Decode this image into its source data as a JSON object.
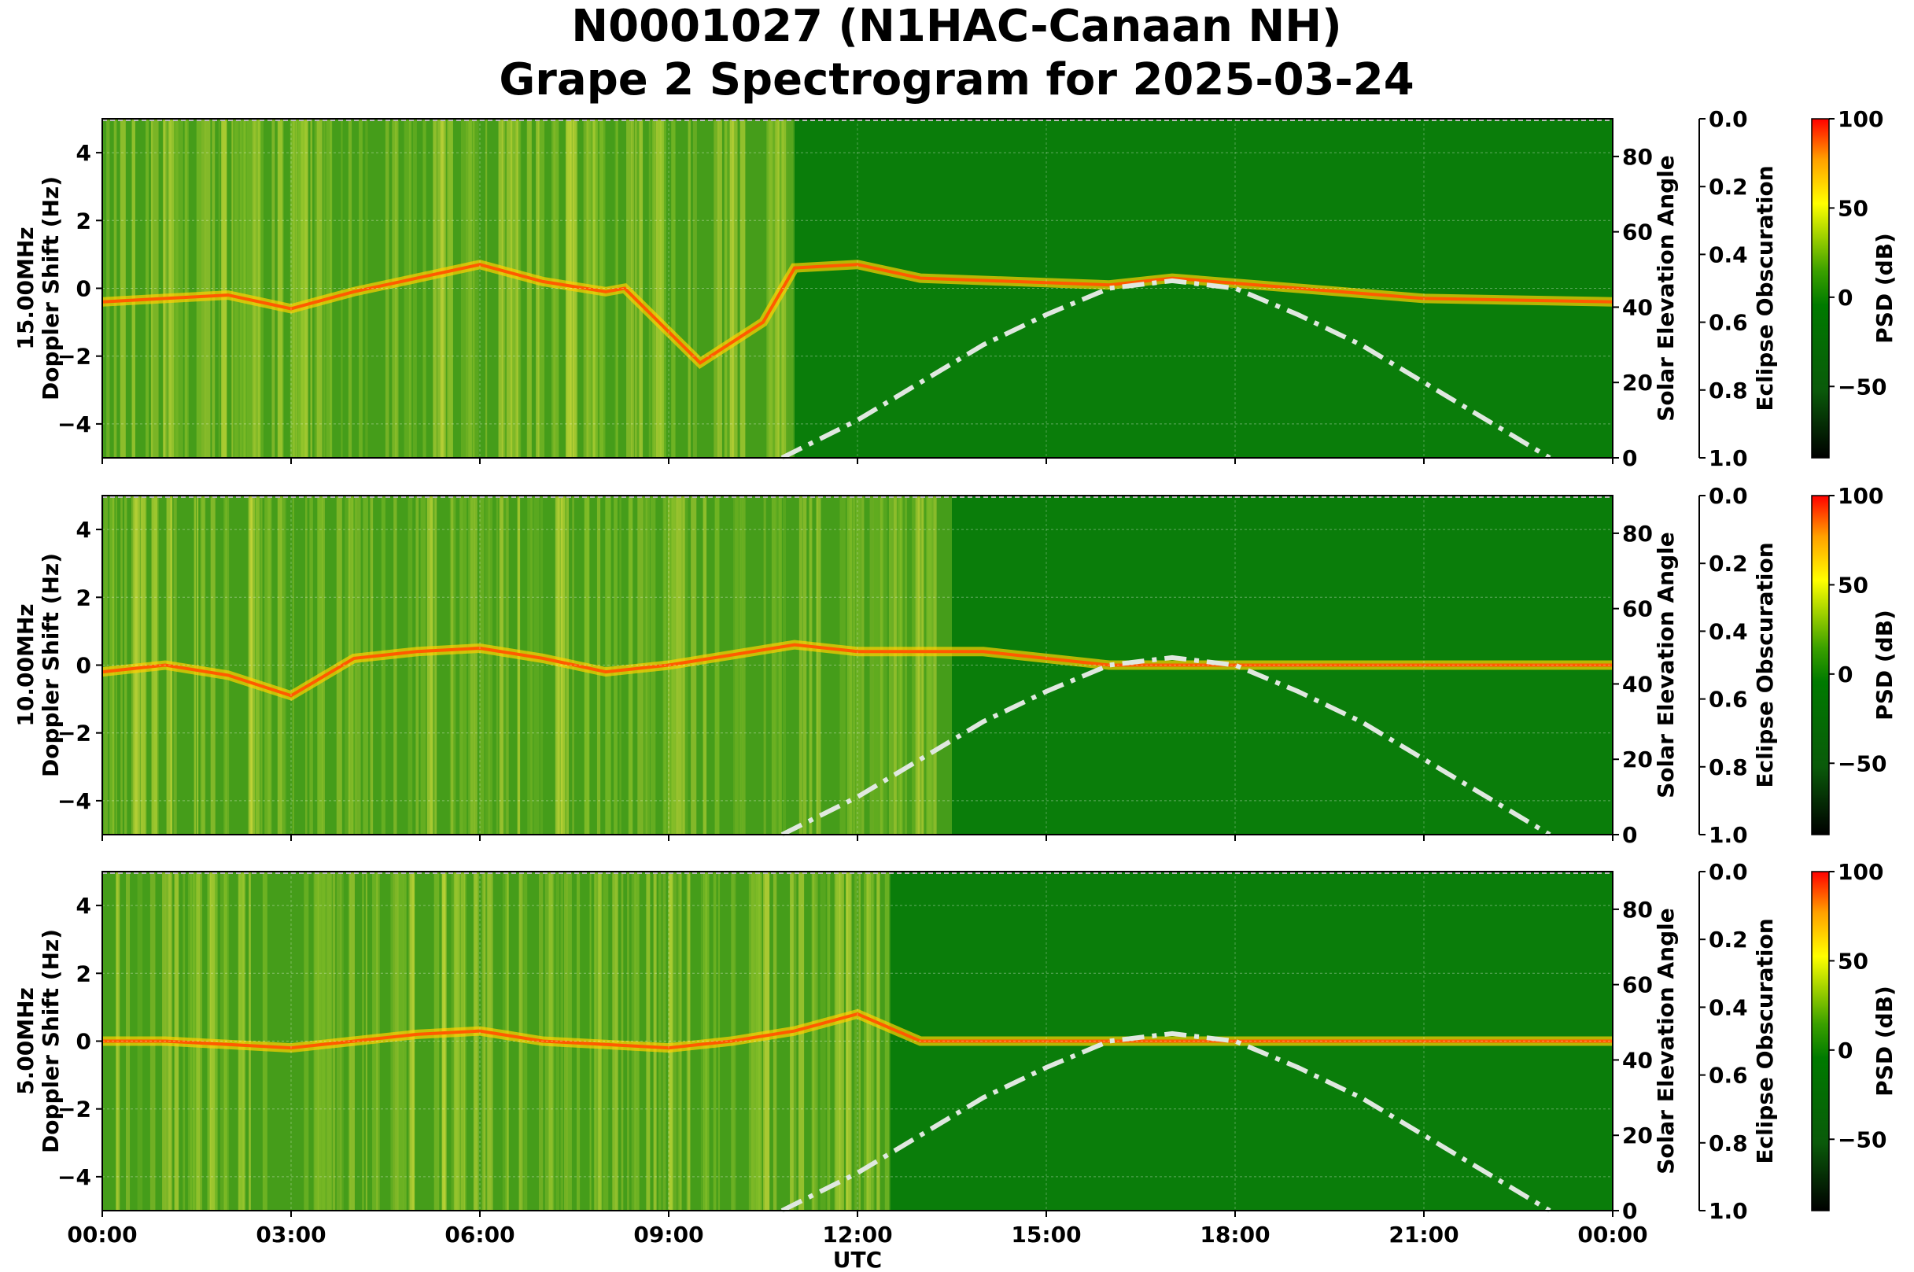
{
  "chart_data": {
    "type": "heatmap",
    "title": [
      "N0001027 (N1HAC-Canaan NH)",
      "Grape 2 Spectrogram for 2025-03-24"
    ],
    "xlabel": "UTC",
    "x_ticks": [
      "00:00",
      "03:00",
      "06:00",
      "09:00",
      "12:00",
      "15:00",
      "18:00",
      "21:00",
      "00:00"
    ],
    "x_range_hours": [
      0,
      24
    ],
    "ylabel": "Doppler Shift (Hz)",
    "ylim": [
      -5,
      5
    ],
    "y_ticks": [
      4,
      2,
      0,
      -2,
      -4
    ],
    "y2_label": "Solar Elevation Angle",
    "y2_ticks": [
      80,
      60,
      40,
      20,
      0
    ],
    "y2_range": [
      0,
      90
    ],
    "y3_label": "Eclipse Obscuration",
    "y3_ticks": [
      "0.0",
      "0.2",
      "0.4",
      "0.6",
      "0.8",
      "1.0"
    ],
    "colorbar": {
      "label": "PSD (dB)",
      "range": [
        -90,
        100
      ],
      "ticks": [
        100,
        50,
        0,
        -50
      ],
      "tick_labels": [
        "100",
        "50",
        "0",
        "−50"
      ],
      "colors": [
        "#000000",
        "#007a00",
        "#ffff00",
        "#ff0000"
      ]
    },
    "solar_elevation_curve": {
      "style": "dash-dot",
      "color": "#e0e8e0",
      "points": [
        [
          10.8,
          0
        ],
        [
          12,
          10
        ],
        [
          13,
          20
        ],
        [
          14,
          30
        ],
        [
          15,
          38
        ],
        [
          16,
          45
        ],
        [
          17,
          47
        ],
        [
          18,
          45
        ],
        [
          19,
          38
        ],
        [
          20,
          30
        ],
        [
          21,
          20
        ],
        [
          22,
          10
        ],
        [
          23,
          0
        ]
      ]
    },
    "panels": [
      {
        "band_label": "15.00MHz",
        "carrier_trace": [
          [
            0,
            -0.4
          ],
          [
            1,
            -0.3
          ],
          [
            2,
            -0.2
          ],
          [
            3,
            -0.6
          ],
          [
            4,
            -0.1
          ],
          [
            5,
            0.3
          ],
          [
            6,
            0.7
          ],
          [
            7,
            0.2
          ],
          [
            8,
            -0.1
          ],
          [
            8.3,
            0
          ],
          [
            9.5,
            -2.2
          ],
          [
            10.5,
            -1.0
          ],
          [
            11,
            0.6
          ],
          [
            12,
            0.7
          ],
          [
            13,
            0.3
          ],
          [
            16,
            0.1
          ],
          [
            17,
            0.3
          ],
          [
            19,
            0.0
          ],
          [
            21,
            -0.3
          ],
          [
            24,
            -0.4
          ]
        ]
      },
      {
        "band_label": "10.00MHz",
        "carrier_trace": [
          [
            0,
            -0.2
          ],
          [
            1,
            0.0
          ],
          [
            2,
            -0.3
          ],
          [
            3,
            -0.9
          ],
          [
            4,
            0.2
          ],
          [
            5,
            0.4
          ],
          [
            6,
            0.5
          ],
          [
            7,
            0.2
          ],
          [
            8,
            -0.2
          ],
          [
            9,
            0.0
          ],
          [
            10,
            0.3
          ],
          [
            11,
            0.6
          ],
          [
            12,
            0.4
          ],
          [
            14,
            0.4
          ],
          [
            16,
            0.0
          ],
          [
            24,
            0.0
          ]
        ]
      },
      {
        "band_label": "5.00MHz",
        "carrier_trace": [
          [
            0,
            0.0
          ],
          [
            1,
            0.0
          ],
          [
            2,
            -0.1
          ],
          [
            3,
            -0.2
          ],
          [
            4,
            0.0
          ],
          [
            5,
            0.2
          ],
          [
            6,
            0.3
          ],
          [
            7,
            0.0
          ],
          [
            8,
            -0.1
          ],
          [
            9,
            -0.2
          ],
          [
            10,
            0.0
          ],
          [
            11,
            0.3
          ],
          [
            12,
            0.8
          ],
          [
            13,
            0.0
          ],
          [
            24,
            0.0
          ]
        ]
      }
    ]
  }
}
